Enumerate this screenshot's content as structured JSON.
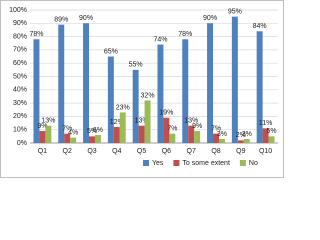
{
  "chart_data": {
    "type": "bar",
    "categories": [
      "Q1",
      "Q2",
      "Q3",
      "Q4",
      "Q5",
      "Q6",
      "Q7",
      "Q8",
      "Q9",
      "Q10"
    ],
    "series": [
      {
        "name": "Yes",
        "color": "#4f81bd",
        "values": [
          78,
          89,
          90,
          65,
          55,
          74,
          78,
          90,
          95,
          84
        ],
        "value_labels": [
          "78%",
          "89%",
          "90%",
          "65%",
          "55%",
          "74%",
          "78%",
          "90%",
          "95%",
          "84%"
        ]
      },
      {
        "name": "To some extent",
        "color": "#c0504d",
        "values": [
          9,
          7,
          5,
          12,
          13,
          19,
          13,
          7,
          2,
          11
        ],
        "value_labels": [
          "9%",
          "7%",
          "5%",
          "12%",
          "13%",
          "19%",
          "13%",
          "7%",
          "2%",
          "11%"
        ]
      },
      {
        "name": "No",
        "color": "#9bbb59",
        "values": [
          13,
          4,
          6,
          23,
          32,
          7,
          9,
          3,
          3,
          5
        ],
        "value_labels": [
          "13%",
          "4%",
          "6%",
          "23%",
          "32%",
          "7%",
          "9%",
          "3%",
          "3%",
          "5%"
        ]
      }
    ],
    "ylim": [
      0,
      100
    ],
    "yticks": [
      {
        "value": 0,
        "label": "0%"
      },
      {
        "value": 10,
        "label": "10%"
      },
      {
        "value": 20,
        "label": "20%"
      },
      {
        "value": 30,
        "label": "30%"
      },
      {
        "value": 40,
        "label": "40%"
      },
      {
        "value": 50,
        "label": "50%"
      },
      {
        "value": 60,
        "label": "60%"
      },
      {
        "value": 70,
        "label": "70%"
      },
      {
        "value": 80,
        "label": "80%"
      },
      {
        "value": 90,
        "label": "90%"
      },
      {
        "value": 100,
        "label": "100%"
      }
    ],
    "grid": true,
    "legend": "bottom"
  }
}
